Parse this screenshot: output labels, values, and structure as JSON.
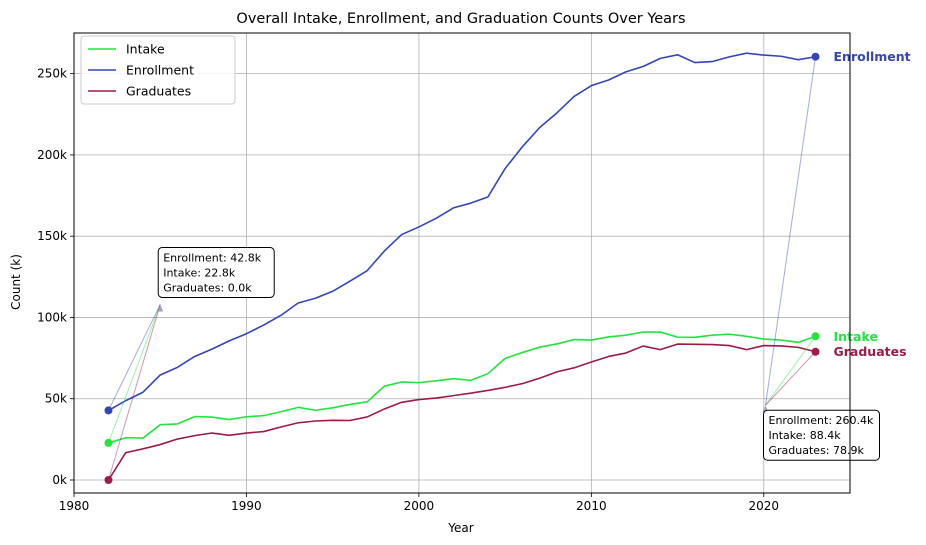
{
  "chart_data": {
    "type": "line",
    "title": "Overall Intake, Enrollment, and Graduation Counts Over Years",
    "xlabel": "Year",
    "ylabel": "Count (k)",
    "xlim": [
      1980,
      2025
    ],
    "ylim": [
      -8000,
      275000
    ],
    "grid": true,
    "legend_position": "top-left",
    "x_ticks": [
      {
        "value": 1980,
        "label": "1980"
      },
      {
        "value": 1990,
        "label": "1990"
      },
      {
        "value": 2000,
        "label": "2000"
      },
      {
        "value": 2010,
        "label": "2010"
      },
      {
        "value": 2020,
        "label": "2020"
      }
    ],
    "y_ticks": [
      {
        "value": 0,
        "label": "0k"
      },
      {
        "value": 50000,
        "label": "50k"
      },
      {
        "value": 100000,
        "label": "100k"
      },
      {
        "value": 150000,
        "label": "150k"
      },
      {
        "value": 200000,
        "label": "200k"
      },
      {
        "value": 250000,
        "label": "250k"
      }
    ],
    "x": [
      1982,
      1983,
      1984,
      1985,
      1986,
      1987,
      1988,
      1989,
      1990,
      1991,
      1992,
      1993,
      1994,
      1995,
      1996,
      1997,
      1998,
      1999,
      2000,
      2001,
      2002,
      2003,
      2004,
      2005,
      2006,
      2007,
      2008,
      2009,
      2010,
      2011,
      2012,
      2013,
      2014,
      2015,
      2016,
      2017,
      2018,
      2019,
      2020,
      2021,
      2022,
      2023
    ],
    "series": [
      {
        "name": "Intake",
        "color": "#22e33f",
        "values": [
          22800,
          26000,
          25800,
          34000,
          34500,
          39000,
          38700,
          37200,
          38900,
          39600,
          42000,
          44700,
          42900,
          44400,
          46500,
          48100,
          57700,
          60300,
          59900,
          61000,
          62300,
          61300,
          65400,
          74800,
          78400,
          81700,
          83700,
          86400,
          86100,
          88000,
          89100,
          91000,
          91000,
          87900,
          87800,
          89100,
          89700,
          88400,
          86700,
          86100,
          84700,
          88400
        ],
        "end_label": "Intake"
      },
      {
        "name": "Enrollment",
        "color": "#3445b8",
        "values": [
          42800,
          48800,
          54000,
          64600,
          69300,
          76000,
          80500,
          85600,
          90000,
          95300,
          101300,
          108900,
          111800,
          116100,
          122300,
          128800,
          140900,
          151000,
          155700,
          161000,
          167400,
          170300,
          174100,
          191600,
          205000,
          216800,
          225800,
          236000,
          242600,
          246100,
          251100,
          254400,
          259400,
          261600,
          256800,
          257400,
          260300,
          262600,
          261400,
          260700,
          258600,
          260400
        ],
        "end_label": "Enrollment"
      },
      {
        "name": "Graduates",
        "color": "#9b1b4b",
        "values": [
          0,
          16800,
          19200,
          21800,
          25200,
          27300,
          28900,
          27500,
          28900,
          29800,
          32600,
          35200,
          36300,
          36700,
          36600,
          38800,
          43700,
          47800,
          49500,
          50400,
          51900,
          53400,
          55100,
          57000,
          59300,
          62600,
          66500,
          69000,
          72600,
          76000,
          78100,
          82400,
          80200,
          83600,
          83500,
          83300,
          82700,
          80200,
          82700,
          82500,
          81600,
          78900
        ],
        "end_label": "Graduates"
      }
    ],
    "annotations": [
      {
        "name": "start",
        "lines": [
          "Enrollment: 42.8k",
          "Intake: 22.8k",
          "Graduates: 0.0k"
        ],
        "anchor": [
          1985,
          108000
        ],
        "from_year": 1982
      },
      {
        "name": "end",
        "lines": [
          "Enrollment: 260.4k",
          "Intake: 88.4k",
          "Graduates: 78.9k"
        ],
        "anchor": [
          2020.1,
          46000
        ],
        "from_year": 2023
      }
    ]
  }
}
